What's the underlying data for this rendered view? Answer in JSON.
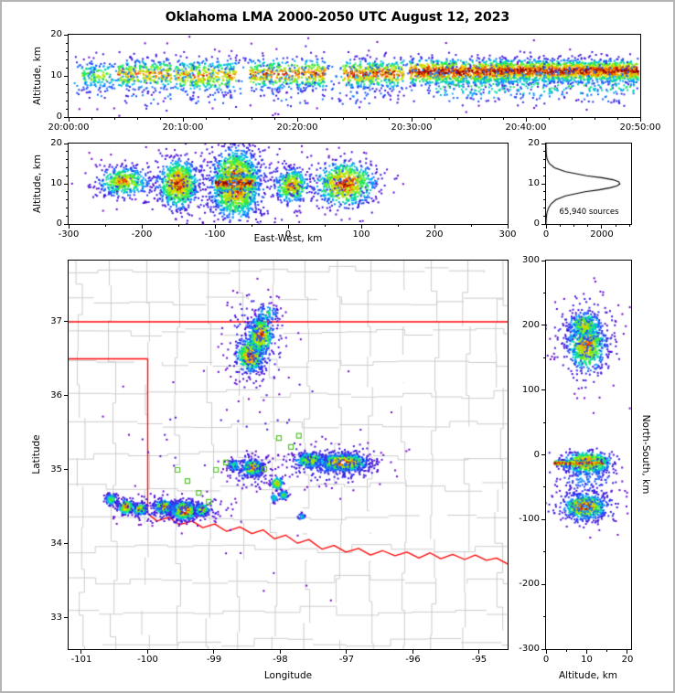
{
  "title": "Oklahoma LMA 2000-2050 UTC August 12, 2023",
  "colors": {
    "colormap": [
      "#8000c8",
      "#3c14dc",
      "#1e5aff",
      "#00b4ff",
      "#00e68c",
      "#50e61e",
      "#d2f000",
      "#ffb400",
      "#f03200",
      "#8c0000"
    ],
    "state_border": "#ff0000",
    "county": "#cccccc",
    "station": "#54c22a",
    "curve": "#000000",
    "frame_border": "#b5b5b5"
  },
  "chart_data": [
    {
      "name": "time-height",
      "type": "scatter",
      "ylabel": "Altitude, km",
      "xlim": [
        0,
        3000
      ],
      "ylim": [
        0,
        20
      ],
      "xtick_vals": [
        0,
        600,
        1200,
        1800,
        2400,
        3000
      ],
      "xtick_labels": [
        "20:00:00",
        "20:10:00",
        "20:20:00",
        "20:30:00",
        "20:40:00",
        "20:50:00"
      ],
      "ytick_vals": [
        0,
        10,
        20
      ],
      "ytick_labels": [
        "0",
        "10",
        "20"
      ],
      "xminor_step": 120,
      "yminor_step": 2,
      "clusters": [
        {
          "cx": 150,
          "cy": 10,
          "sx": 80,
          "sy": 1.8,
          "n": 130,
          "i": 0.6,
          "shape": "flat"
        },
        {
          "cx": 400,
          "cy": 10.4,
          "sx": 140,
          "sy": 1.9,
          "n": 300,
          "i": 0.8,
          "shape": "flat"
        },
        {
          "cx": 720,
          "cy": 10,
          "sx": 160,
          "sy": 2.0,
          "n": 350,
          "i": 0.8,
          "shape": "flat"
        },
        {
          "cx": 1150,
          "cy": 10.4,
          "sx": 200,
          "sy": 1.9,
          "n": 430,
          "i": 0.85,
          "shape": "flat"
        },
        {
          "cx": 1600,
          "cy": 10.5,
          "sx": 160,
          "sy": 1.8,
          "n": 420,
          "i": 0.9,
          "shape": "flat"
        },
        {
          "cx": 2050,
          "cy": 11,
          "sx": 260,
          "sy": 1.6,
          "n": 950,
          "i": 1.0,
          "shape": "flat"
        },
        {
          "cx": 2620,
          "cy": 11.2,
          "sx": 370,
          "sy": 1.4,
          "n": 1700,
          "i": 1.0,
          "shape": "flat"
        },
        {
          "cx": 1500,
          "cy": 9.5,
          "sx": 1470,
          "sy": 3.3,
          "n": 650,
          "i": 0.3,
          "shape": "flat"
        },
        {
          "cx": 2450,
          "cy": 7.5,
          "sx": 520,
          "sy": 2.4,
          "n": 280,
          "i": 0.45,
          "shape": "flat"
        },
        {
          "cx": 900,
          "cy": 5,
          "sx": 800,
          "sy": 2.2,
          "n": 90,
          "i": 0.25,
          "shape": "flat"
        }
      ]
    },
    {
      "name": "east-west",
      "type": "scatter",
      "xlabel": "East-West, km",
      "ylabel": "Altitude, km",
      "xlim": [
        -300,
        300
      ],
      "ylim": [
        0,
        20
      ],
      "xtick_vals": [
        -300,
        -200,
        -100,
        0,
        100,
        200,
        300
      ],
      "xtick_labels": [
        "-300",
        "-200",
        "-100",
        "0",
        "100",
        "200",
        "300"
      ],
      "ytick_vals": [
        0,
        10,
        20
      ],
      "ytick_labels": [
        "0",
        "10",
        "20"
      ],
      "xminor_step": 50,
      "yminor_step": 2,
      "clusters": [
        {
          "cx": -225,
          "cy": 10.5,
          "sx": 16,
          "sy": 1.7,
          "n": 450,
          "i": 0.85
        },
        {
          "cx": -150,
          "cy": 10,
          "sx": 13,
          "sy": 2.9,
          "n": 800,
          "i": 0.95
        },
        {
          "cx": -72,
          "cy": 10,
          "sx": 16,
          "sy": 4.2,
          "n": 1500,
          "i": 1.0,
          "white": true
        },
        {
          "cx": -72,
          "cy": 10.2,
          "sx": 27,
          "sy": 1.1,
          "n": 320,
          "i": 1.0,
          "shape": "flat"
        },
        {
          "cx": 5,
          "cy": 9.5,
          "sx": 11,
          "sy": 2.1,
          "n": 400,
          "i": 0.85
        },
        {
          "cx": 78,
          "cy": 10,
          "sx": 20,
          "sy": 2.7,
          "n": 720,
          "i": 0.95
        },
        {
          "cx": -70,
          "cy": 10,
          "sx": 58,
          "sy": 5.2,
          "n": 230,
          "i": 0.25
        },
        {
          "cx": 60,
          "cy": 10,
          "sx": 46,
          "sy": 4.0,
          "n": 110,
          "i": 0.25
        },
        {
          "cx": -195,
          "cy": 10,
          "sx": 48,
          "sy": 3.2,
          "n": 100,
          "i": 0.25
        }
      ]
    },
    {
      "name": "altitude-histogram",
      "type": "line",
      "annotation": "65,940 sources",
      "xlim": [
        0,
        3050
      ],
      "ylim": [
        0,
        20
      ],
      "xtick_vals": [
        0,
        2000
      ],
      "xtick_labels": [
        "0",
        "2000"
      ],
      "ytick_vals": [
        0,
        10,
        20
      ],
      "ytick_labels": [
        "0",
        "10",
        "20"
      ],
      "xminor_step": 500,
      "yminor_step": 2,
      "curve": {
        "alt": [
          0,
          1,
          2,
          3,
          4,
          5,
          6,
          7,
          8,
          8.5,
          9,
          9.5,
          10,
          10.5,
          11,
          11.5,
          12,
          13,
          14,
          15,
          16,
          17,
          18,
          20
        ],
        "count": [
          0,
          5,
          15,
          40,
          90,
          180,
          350,
          700,
          1400,
          1900,
          2300,
          2550,
          2650,
          2600,
          2400,
          2000,
          1450,
          700,
          300,
          120,
          45,
          15,
          5,
          0
        ]
      }
    },
    {
      "name": "plan-view-map",
      "type": "scatter",
      "xlabel": "Longitude",
      "ylabel": "Latitude",
      "xlim": [
        -101.193,
        -94.572
      ],
      "ylim": [
        32.58,
        37.827
      ],
      "xtick_vals": [
        -101,
        -100,
        -99,
        -98,
        -97,
        -96,
        -95
      ],
      "xtick_labels": [
        "-101",
        "-100",
        "-99",
        "-98",
        "-97",
        "-96",
        "-95"
      ],
      "ytick_vals": [
        33,
        34,
        35,
        36,
        37
      ],
      "ytick_labels": [
        "33",
        "34",
        "35",
        "36",
        "37"
      ],
      "borders": [
        [
          [
            -101.193,
            37
          ],
          [
            -94.572,
            37
          ]
        ],
        [
          [
            -101.193,
            36.5
          ],
          [
            -100.0,
            36.5
          ]
        ],
        [
          [
            -100.0,
            36.5
          ],
          [
            -100.0,
            34.41
          ]
        ],
        [
          [
            -100.0,
            34.41
          ],
          [
            -99.86,
            34.31
          ],
          [
            -99.68,
            34.36
          ],
          [
            -99.52,
            34.26
          ],
          [
            -99.33,
            34.31
          ],
          [
            -99.17,
            34.22
          ],
          [
            -98.99,
            34.27
          ],
          [
            -98.81,
            34.17
          ],
          [
            -98.61,
            34.23
          ],
          [
            -98.43,
            34.14
          ],
          [
            -98.26,
            34.19
          ],
          [
            -98.09,
            34.07
          ],
          [
            -97.92,
            34.12
          ],
          [
            -97.74,
            34.01
          ],
          [
            -97.57,
            34.06
          ],
          [
            -97.37,
            33.93
          ],
          [
            -97.19,
            33.98
          ],
          [
            -97.01,
            33.89
          ],
          [
            -96.82,
            33.94
          ],
          [
            -96.64,
            33.85
          ],
          [
            -96.46,
            33.91
          ],
          [
            -96.27,
            33.84
          ],
          [
            -96.09,
            33.89
          ],
          [
            -95.91,
            33.81
          ],
          [
            -95.74,
            33.88
          ],
          [
            -95.58,
            33.8
          ],
          [
            -95.4,
            33.86
          ],
          [
            -95.22,
            33.79
          ],
          [
            -95.06,
            33.85
          ],
          [
            -94.89,
            33.78
          ],
          [
            -94.74,
            33.81
          ],
          [
            -94.572,
            33.73
          ]
        ]
      ],
      "stations": [
        [
          -99.55,
          35.0
        ],
        [
          -99.4,
          34.85
        ],
        [
          -99.23,
          34.69
        ],
        [
          -98.97,
          35.0
        ],
        [
          -98.82,
          35.1
        ],
        [
          -98.24,
          35.01
        ],
        [
          -98.02,
          35.43
        ],
        [
          -97.84,
          35.31
        ],
        [
          -97.72,
          35.46
        ],
        [
          -99.08,
          34.57
        ]
      ],
      "clusters": [
        {
          "cx": -98.45,
          "cy": 36.55,
          "sx": 0.1,
          "sy": 0.11,
          "n": 520,
          "i": 0.95
        },
        {
          "cx": -98.3,
          "cy": 36.82,
          "sx": 0.09,
          "sy": 0.13,
          "n": 430,
          "i": 0.9
        },
        {
          "cx": -98.37,
          "cy": 36.75,
          "sx": 0.22,
          "sy": 0.33,
          "n": 220,
          "i": 0.27
        },
        {
          "cx": -98.2,
          "cy": 37.12,
          "sx": 0.08,
          "sy": 0.06,
          "n": 70,
          "i": 0.5
        },
        {
          "cx": -97.05,
          "cy": 35.1,
          "sx": 0.17,
          "sy": 0.055,
          "n": 1050,
          "i": 1.0,
          "white": true
        },
        {
          "cx": -97.55,
          "cy": 35.13,
          "sx": 0.11,
          "sy": 0.05,
          "n": 320,
          "i": 0.75
        },
        {
          "cx": -97.2,
          "cy": 35.08,
          "sx": 0.38,
          "sy": 0.13,
          "n": 270,
          "i": 0.27
        },
        {
          "cx": -98.42,
          "cy": 35.03,
          "sx": 0.07,
          "sy": 0.05,
          "n": 420,
          "i": 0.95
        },
        {
          "cx": -98.7,
          "cy": 35.06,
          "sx": 0.05,
          "sy": 0.04,
          "n": 80,
          "i": 0.5
        },
        {
          "cx": -98.45,
          "cy": 35.0,
          "sx": 0.18,
          "sy": 0.12,
          "n": 120,
          "i": 0.25
        },
        {
          "cx": -98.05,
          "cy": 34.82,
          "sx": 0.045,
          "sy": 0.04,
          "n": 120,
          "i": 0.8
        },
        {
          "cx": -97.95,
          "cy": 34.66,
          "sx": 0.035,
          "sy": 0.03,
          "n": 60,
          "i": 0.6
        },
        {
          "cx": -97.68,
          "cy": 34.37,
          "sx": 0.03,
          "sy": 0.025,
          "n": 25,
          "i": 0.4
        },
        {
          "cx": -100.55,
          "cy": 34.6,
          "sx": 0.045,
          "sy": 0.04,
          "n": 90,
          "i": 0.6
        },
        {
          "cx": -100.33,
          "cy": 34.5,
          "sx": 0.06,
          "sy": 0.05,
          "n": 240,
          "i": 0.85
        },
        {
          "cx": -100.12,
          "cy": 34.47,
          "sx": 0.05,
          "sy": 0.04,
          "n": 200,
          "i": 0.8
        },
        {
          "cx": -99.75,
          "cy": 34.5,
          "sx": 0.07,
          "sy": 0.05,
          "n": 280,
          "i": 0.85
        },
        {
          "cx": -99.45,
          "cy": 34.45,
          "sx": 0.09,
          "sy": 0.06,
          "n": 600,
          "i": 1.0,
          "white": true
        },
        {
          "cx": -99.18,
          "cy": 34.46,
          "sx": 0.05,
          "sy": 0.04,
          "n": 200,
          "i": 0.8
        },
        {
          "cx": -99.6,
          "cy": 34.48,
          "sx": 0.45,
          "sy": 0.1,
          "n": 220,
          "i": 0.22
        },
        {
          "cx": -98.09,
          "cy": 34.62,
          "sx": 0.03,
          "sy": 0.03,
          "n": 40,
          "i": 0.5
        },
        {
          "cx": -98.3,
          "cy": 35.3,
          "sx": 1.1,
          "sy": 0.9,
          "n": 60,
          "i": 0.12
        }
      ]
    },
    {
      "name": "north-south",
      "type": "scatter",
      "xlabel": "Altitude, km",
      "ylabel": "North-South, km",
      "xlim": [
        0,
        20.9
      ],
      "ylim": [
        -300,
        300
      ],
      "xtick_vals": [
        0,
        10,
        20
      ],
      "xtick_labels": [
        "0",
        "10",
        "20"
      ],
      "ytick_vals": [
        -300,
        -200,
        -100,
        0,
        100,
        200,
        300
      ],
      "ytick_labels": [
        "-300",
        "-200",
        "-100",
        "0",
        "100",
        "200",
        "300"
      ],
      "xminor_step": 5,
      "yminor_step": 50,
      "clusters": [
        {
          "cx": 10,
          "cy": 170,
          "sx": 2.3,
          "sy": 20,
          "n": 620,
          "i": 0.85
        },
        {
          "cx": 9.5,
          "cy": 200,
          "sx": 2.0,
          "sy": 10,
          "n": 240,
          "i": 0.72
        },
        {
          "cx": 10,
          "cy": 180,
          "sx": 4.2,
          "sy": 36,
          "n": 200,
          "i": 0.27
        },
        {
          "cx": 10,
          "cy": -12,
          "sx": 2.8,
          "sy": 8,
          "n": 750,
          "i": 1.0
        },
        {
          "cx": 8,
          "cy": -13,
          "sx": 6,
          "sy": 2.2,
          "n": 330,
          "i": 1.0,
          "shape": "flat"
        },
        {
          "cx": 9.5,
          "cy": -80,
          "sx": 2.5,
          "sy": 9,
          "n": 620,
          "i": 1.0,
          "white": true
        },
        {
          "cx": 10,
          "cy": -80,
          "sx": 4.5,
          "sy": 17,
          "n": 170,
          "i": 0.3
        },
        {
          "cx": 10,
          "cy": -35,
          "sx": 4,
          "sy": 14,
          "n": 130,
          "i": 0.3
        }
      ]
    }
  ]
}
